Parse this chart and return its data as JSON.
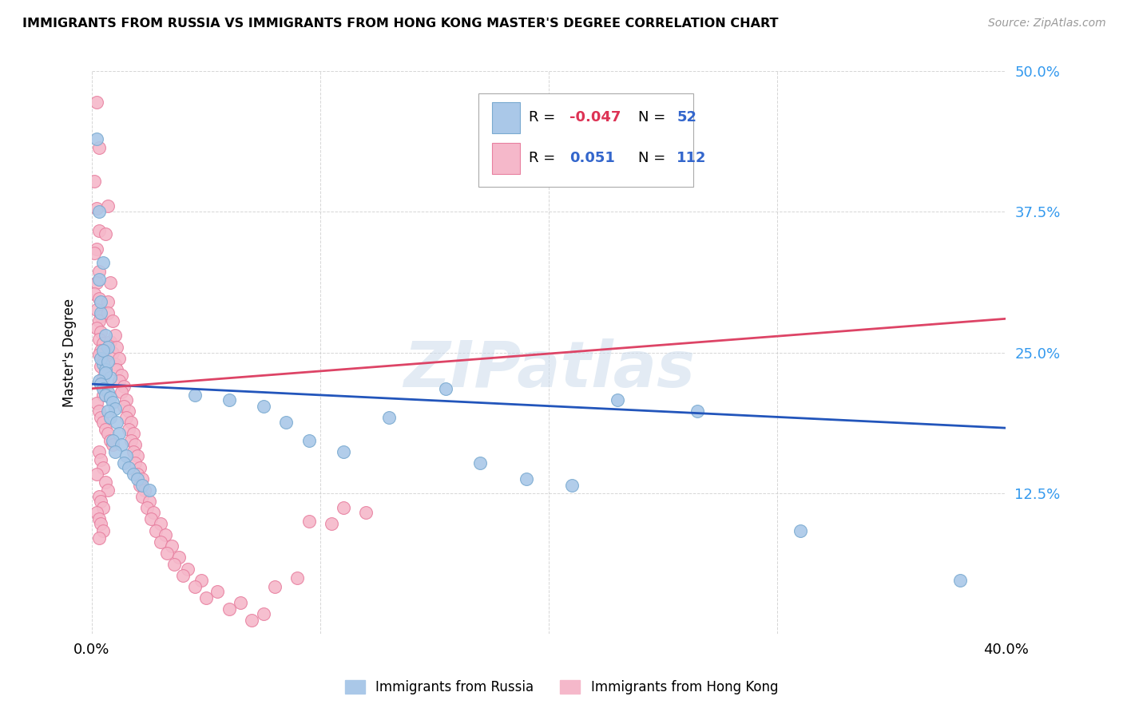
{
  "title": "IMMIGRANTS FROM RUSSIA VS IMMIGRANTS FROM HONG KONG MASTER'S DEGREE CORRELATION CHART",
  "source": "Source: ZipAtlas.com",
  "ylabel": "Master's Degree",
  "xlim": [
    0.0,
    0.4
  ],
  "ylim": [
    0.0,
    0.5
  ],
  "russia_color": "#aac8e8",
  "russia_edge": "#7aaad0",
  "hk_color": "#f5b8ca",
  "hk_edge": "#e880a0",
  "russia_line_color": "#2255bb",
  "hk_line_color": "#dd4466",
  "russia_R": -0.047,
  "russia_N": 52,
  "hk_R": 0.051,
  "hk_N": 112,
  "watermark": "ZIPatlas",
  "russia_line_y0": 0.222,
  "russia_line_y1": 0.183,
  "hk_line_y0": 0.218,
  "hk_line_y1": 0.28,
  "russia_x": [
    0.002,
    0.004,
    0.003,
    0.005,
    0.006,
    0.003,
    0.004,
    0.005,
    0.007,
    0.004,
    0.006,
    0.005,
    0.007,
    0.008,
    0.006,
    0.003,
    0.004,
    0.005,
    0.007,
    0.006,
    0.008,
    0.009,
    0.01,
    0.007,
    0.008,
    0.011,
    0.012,
    0.009,
    0.013,
    0.01,
    0.015,
    0.014,
    0.016,
    0.018,
    0.02,
    0.022,
    0.025,
    0.045,
    0.06,
    0.075,
    0.085,
    0.095,
    0.11,
    0.13,
    0.155,
    0.17,
    0.19,
    0.21,
    0.23,
    0.265,
    0.31,
    0.38
  ],
  "russia_y": [
    0.44,
    0.285,
    0.375,
    0.33,
    0.265,
    0.315,
    0.295,
    0.24,
    0.255,
    0.245,
    0.235,
    0.252,
    0.242,
    0.228,
    0.232,
    0.225,
    0.222,
    0.218,
    0.215,
    0.212,
    0.21,
    0.206,
    0.2,
    0.198,
    0.192,
    0.188,
    0.178,
    0.172,
    0.168,
    0.162,
    0.158,
    0.152,
    0.148,
    0.142,
    0.138,
    0.132,
    0.128,
    0.212,
    0.208,
    0.202,
    0.188,
    0.172,
    0.162,
    0.192,
    0.218,
    0.152,
    0.138,
    0.132,
    0.208,
    0.198,
    0.092,
    0.048
  ],
  "hk_x": [
    0.002,
    0.003,
    0.001,
    0.002,
    0.003,
    0.002,
    0.001,
    0.003,
    0.002,
    0.001,
    0.003,
    0.002,
    0.004,
    0.003,
    0.002,
    0.004,
    0.003,
    0.005,
    0.004,
    0.003,
    0.005,
    0.004,
    0.006,
    0.005,
    0.004,
    0.006,
    0.005,
    0.007,
    0.006,
    0.007,
    0.008,
    0.007,
    0.009,
    0.008,
    0.01,
    0.009,
    0.011,
    0.01,
    0.012,
    0.011,
    0.013,
    0.012,
    0.014,
    0.013,
    0.015,
    0.014,
    0.016,
    0.015,
    0.017,
    0.016,
    0.018,
    0.017,
    0.019,
    0.018,
    0.02,
    0.019,
    0.021,
    0.02,
    0.022,
    0.021,
    0.023,
    0.022,
    0.025,
    0.024,
    0.027,
    0.026,
    0.03,
    0.028,
    0.032,
    0.03,
    0.035,
    0.033,
    0.038,
    0.036,
    0.042,
    0.04,
    0.048,
    0.045,
    0.055,
    0.05,
    0.065,
    0.06,
    0.075,
    0.07,
    0.09,
    0.08,
    0.105,
    0.095,
    0.12,
    0.11,
    0.002,
    0.003,
    0.004,
    0.005,
    0.006,
    0.007,
    0.008,
    0.009,
    0.003,
    0.004,
    0.005,
    0.002,
    0.006,
    0.007,
    0.003,
    0.004,
    0.005,
    0.002,
    0.003,
    0.004,
    0.005,
    0.003
  ],
  "hk_y": [
    0.472,
    0.432,
    0.402,
    0.378,
    0.358,
    0.342,
    0.338,
    0.322,
    0.312,
    0.302,
    0.298,
    0.288,
    0.282,
    0.278,
    0.272,
    0.268,
    0.262,
    0.258,
    0.252,
    0.248,
    0.242,
    0.238,
    0.232,
    0.228,
    0.222,
    0.218,
    0.212,
    0.38,
    0.355,
    0.295,
    0.312,
    0.285,
    0.278,
    0.26,
    0.265,
    0.25,
    0.255,
    0.24,
    0.245,
    0.235,
    0.23,
    0.225,
    0.22,
    0.215,
    0.208,
    0.202,
    0.198,
    0.192,
    0.188,
    0.182,
    0.178,
    0.172,
    0.168,
    0.162,
    0.158,
    0.152,
    0.148,
    0.142,
    0.138,
    0.132,
    0.128,
    0.122,
    0.118,
    0.112,
    0.108,
    0.102,
    0.098,
    0.092,
    0.088,
    0.082,
    0.078,
    0.072,
    0.068,
    0.062,
    0.058,
    0.052,
    0.048,
    0.042,
    0.038,
    0.032,
    0.028,
    0.022,
    0.018,
    0.012,
    0.05,
    0.042,
    0.098,
    0.1,
    0.108,
    0.112,
    0.205,
    0.198,
    0.192,
    0.188,
    0.182,
    0.178,
    0.172,
    0.168,
    0.162,
    0.155,
    0.148,
    0.142,
    0.135,
    0.128,
    0.122,
    0.118,
    0.112,
    0.108,
    0.102,
    0.098,
    0.092,
    0.085
  ]
}
